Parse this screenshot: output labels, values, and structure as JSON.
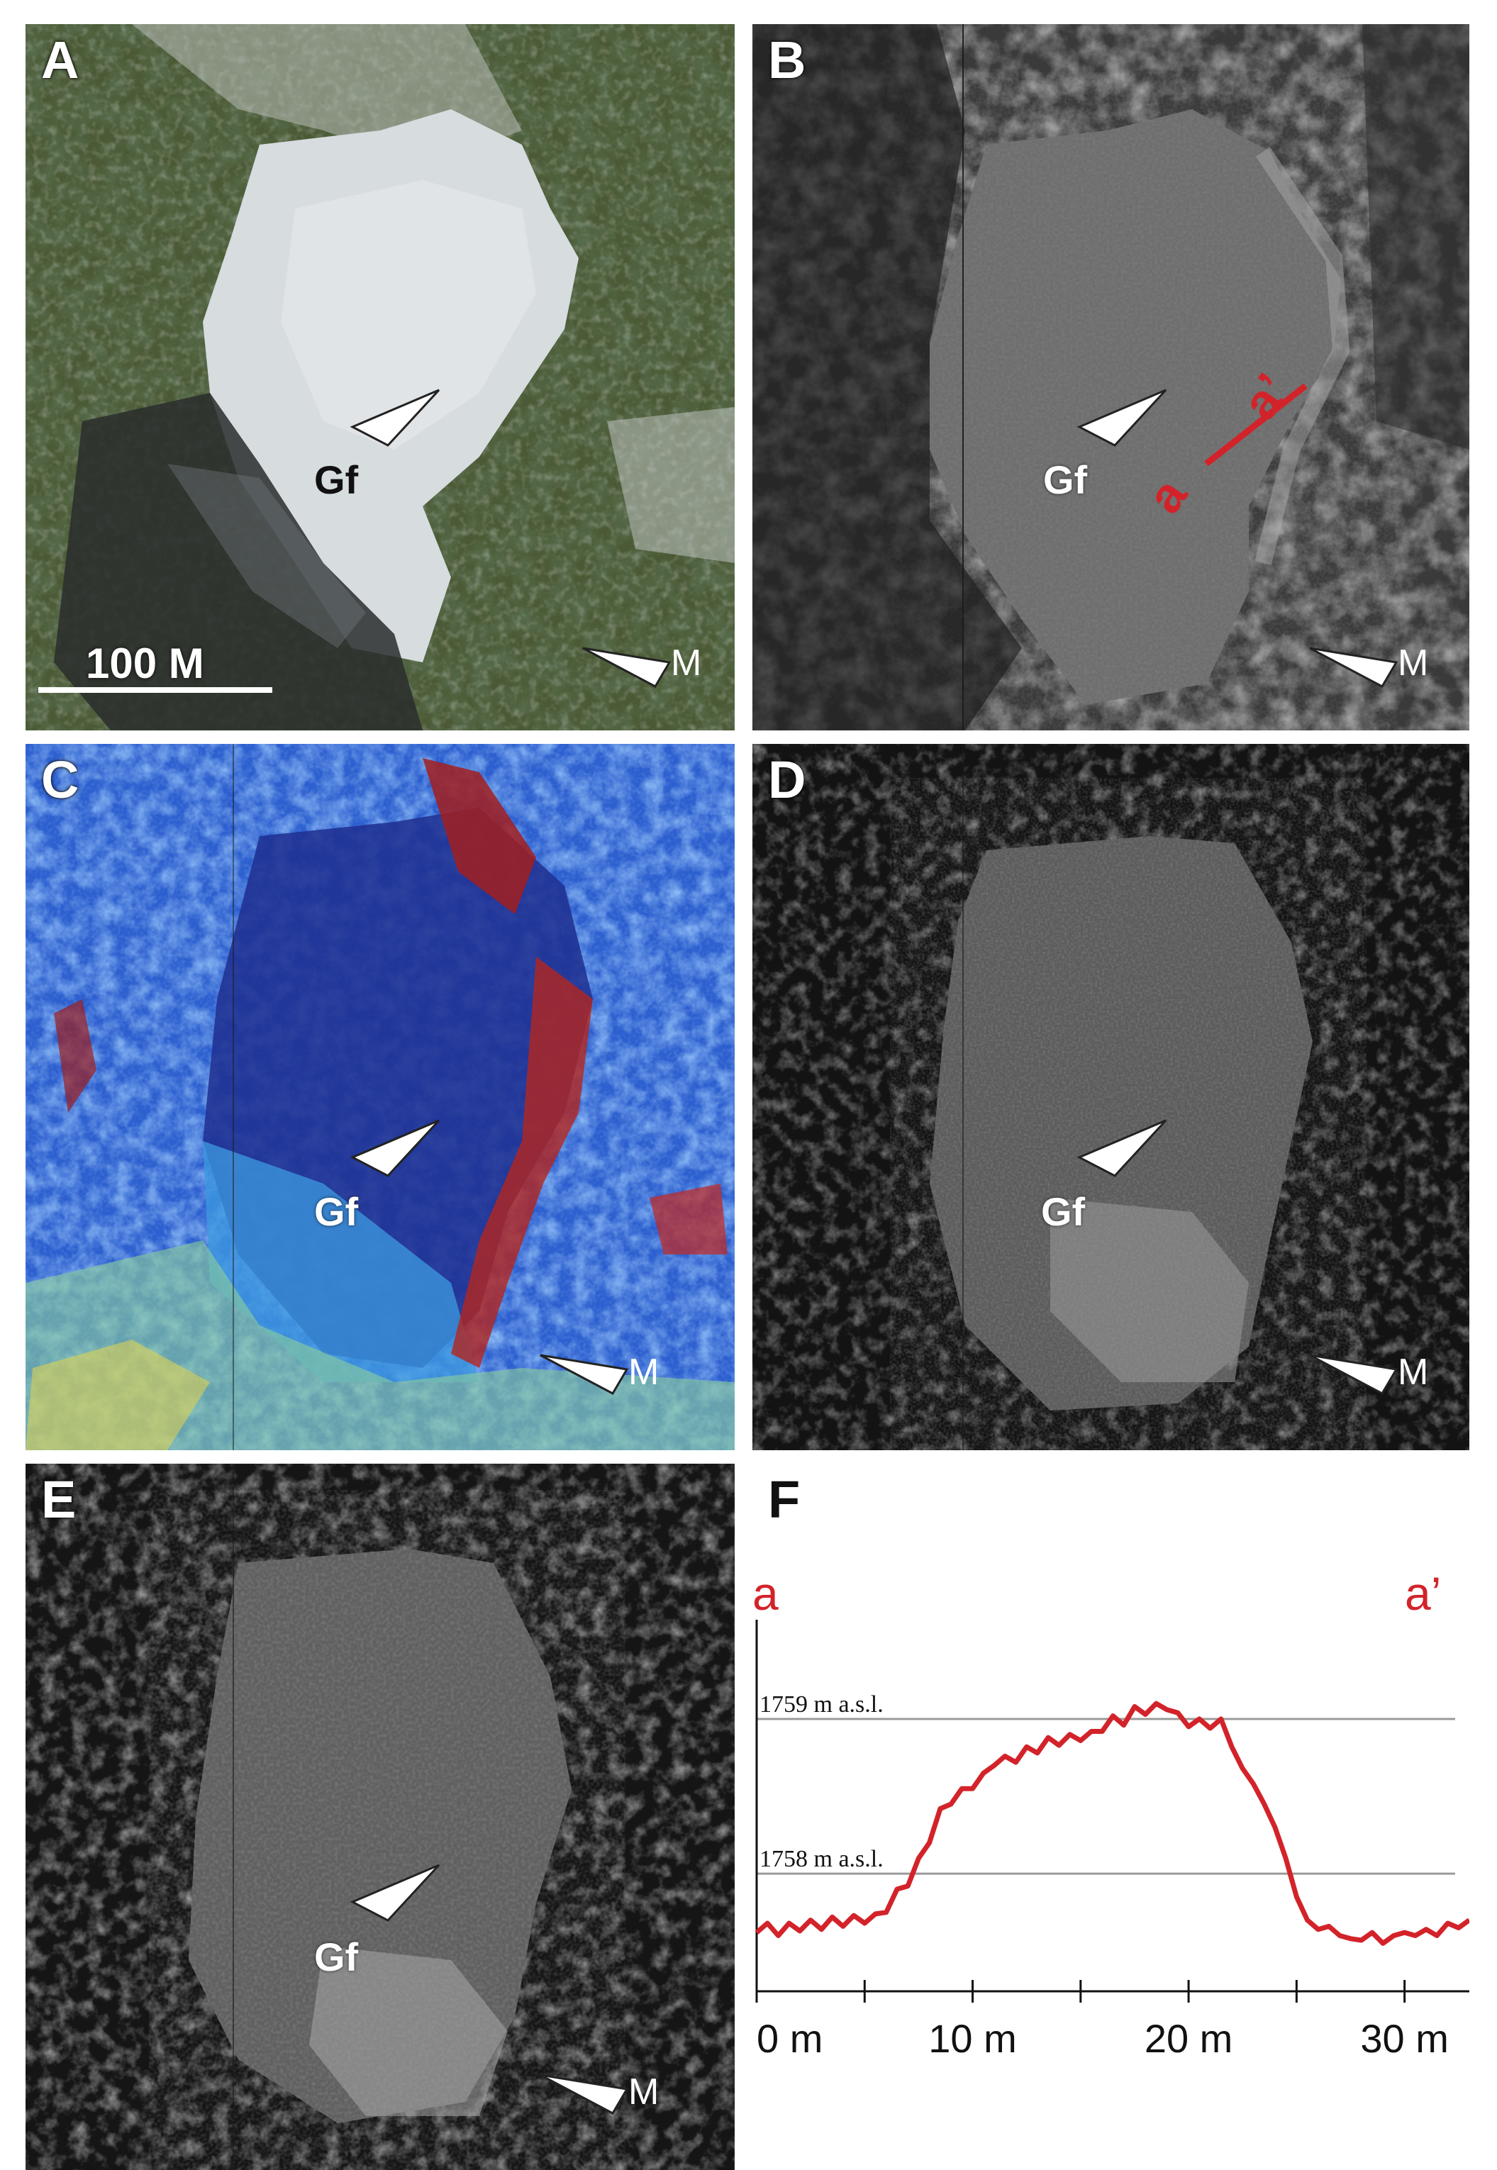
{
  "panels": {
    "A": {
      "label": "A",
      "scale_label": "100 M",
      "gf": "Gf",
      "m": "M"
    },
    "B": {
      "label": "B",
      "gf": "Gf",
      "m": "M",
      "section_a": "a",
      "section_a_prime": "a’"
    },
    "C": {
      "label": "C",
      "gf": "Gf",
      "m": "M"
    },
    "D": {
      "label": "D",
      "gf": "Gf",
      "m": "M"
    },
    "E": {
      "label": "E",
      "gf": "Gf",
      "m": "M"
    },
    "F": {
      "label": "F",
      "end_a": "a",
      "end_a_prime": "a’"
    }
  },
  "colors": {
    "profile": "#d3232a",
    "gridline": "#9a9a9a"
  },
  "chart_data": {
    "type": "line",
    "title": "",
    "xlabel": "",
    "ylabel": "",
    "x_ticks": [
      "0 m",
      "10 m",
      "20 m",
      "30 m"
    ],
    "x_range": [
      0,
      33
    ],
    "y_range": [
      1757.35,
      1759.55
    ],
    "reference_lines": [
      {
        "label": "1759 m a.s.l.",
        "value": 1759
      },
      {
        "label": "1758 m a.s.l.",
        "value": 1758
      }
    ],
    "series": [
      {
        "x": [
          0,
          0.5,
          1,
          1.5,
          2,
          2.5,
          3,
          3.5,
          4,
          4.5,
          5,
          5.5,
          6,
          6.5,
          7,
          7.5,
          8,
          8.5,
          9,
          9.5,
          10,
          10.5,
          11,
          11.5,
          12,
          12.5,
          13,
          13.5,
          14,
          14.5,
          15,
          15.5,
          16,
          16.5,
          17,
          17.5,
          18,
          18.5,
          19,
          19.5,
          20,
          20.5,
          21,
          21.5,
          22,
          22.5,
          23,
          23.5,
          24,
          24.5,
          25,
          25.5,
          26,
          26.5,
          27,
          27.5,
          28,
          28.5,
          29,
          29.5,
          30,
          30.5,
          31,
          31.5,
          32,
          32.5,
          33
        ],
        "y": [
          1757.62,
          1757.68,
          1757.6,
          1757.68,
          1757.63,
          1757.7,
          1757.64,
          1757.72,
          1757.66,
          1757.73,
          1757.68,
          1757.74,
          1757.75,
          1757.9,
          1757.92,
          1758.1,
          1758.2,
          1758.42,
          1758.45,
          1758.55,
          1758.55,
          1758.65,
          1758.7,
          1758.76,
          1758.72,
          1758.82,
          1758.78,
          1758.88,
          1758.83,
          1758.9,
          1758.86,
          1758.92,
          1758.92,
          1759.02,
          1758.96,
          1759.08,
          1759.03,
          1759.1,
          1759.06,
          1759.04,
          1758.95,
          1759.0,
          1758.94,
          1759.0,
          1758.82,
          1758.68,
          1758.58,
          1758.45,
          1758.3,
          1758.1,
          1757.85,
          1757.7,
          1757.64,
          1757.66,
          1757.6,
          1757.58,
          1757.57,
          1757.62,
          1757.55,
          1757.6,
          1757.62,
          1757.6,
          1757.64,
          1757.6,
          1757.68,
          1757.65,
          1757.7
        ]
      }
    ]
  }
}
